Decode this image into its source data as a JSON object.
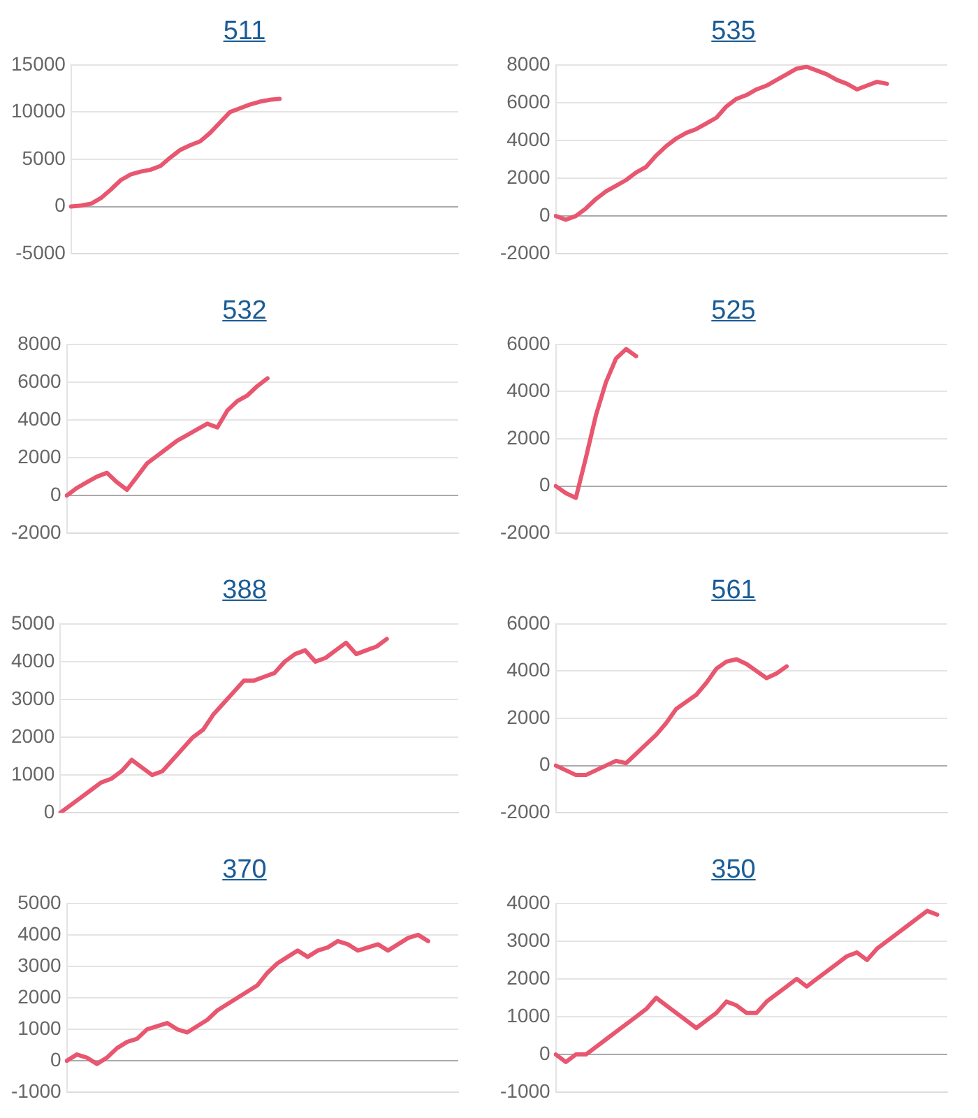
{
  "chart_data": [
    {
      "type": "line",
      "title": "511",
      "categories": [
        null,
        null,
        null,
        null,
        null,
        null,
        null,
        null,
        null,
        null,
        null,
        null,
        null,
        null,
        null,
        null,
        null,
        null,
        null,
        null,
        null,
        null,
        null,
        null,
        null,
        null,
        null,
        null,
        null,
        null,
        null,
        null,
        null,
        null,
        null,
        null,
        null,
        null,
        null,
        null
      ],
      "series": [
        {
          "color": "#e8566f",
          "values": [
            0,
            100,
            300,
            900,
            1800,
            2800,
            3400,
            3700,
            3900,
            4300,
            5200,
            6000,
            6500,
            6900,
            7800,
            8900,
            10000,
            10400,
            10800,
            11100,
            11300,
            11400,
            null,
            null,
            null,
            null,
            null,
            null,
            null,
            null,
            null,
            null,
            null,
            null,
            null,
            null,
            null,
            null,
            null,
            null
          ]
        }
      ],
      "ylim": [
        -5000,
        15000
      ],
      "yticks": [
        -5000,
        0,
        5000,
        10000,
        15000
      ],
      "grid": "y",
      "tick_labels": "y",
      "marker": "none",
      "line_style": "solid"
    },
    {
      "type": "line",
      "title": "535",
      "categories": [
        null,
        null,
        null,
        null,
        null,
        null,
        null,
        null,
        null,
        null,
        null,
        null,
        null,
        null,
        null,
        null,
        null,
        null,
        null,
        null,
        null,
        null,
        null,
        null,
        null,
        null,
        null,
        null,
        null,
        null,
        null,
        null,
        null,
        null,
        null,
        null,
        null,
        null,
        null,
        null
      ],
      "series": [
        {
          "color": "#e8566f",
          "values": [
            0,
            -200,
            0,
            400,
            900,
            1300,
            1600,
            1900,
            2300,
            2600,
            3200,
            3700,
            4100,
            4400,
            4600,
            4900,
            5200,
            5800,
            6200,
            6400,
            6700,
            6900,
            7200,
            7500,
            7800,
            7900,
            7700,
            7500,
            7200,
            7000,
            6700,
            6900,
            7100,
            7000,
            null,
            null,
            null,
            null,
            null,
            null
          ]
        }
      ],
      "ylim": [
        -2000,
        8000
      ],
      "yticks": [
        -2000,
        0,
        2000,
        4000,
        6000,
        8000
      ],
      "grid": "y",
      "tick_labels": "y",
      "marker": "none",
      "line_style": "solid"
    },
    {
      "type": "line",
      "title": "532",
      "categories": [
        null,
        null,
        null,
        null,
        null,
        null,
        null,
        null,
        null,
        null,
        null,
        null,
        null,
        null,
        null,
        null,
        null,
        null,
        null,
        null,
        null,
        null,
        null,
        null,
        null,
        null,
        null,
        null,
        null,
        null,
        null,
        null,
        null,
        null,
        null,
        null,
        null,
        null,
        null,
        null
      ],
      "series": [
        {
          "color": "#e8566f",
          "values": [
            0,
            400,
            700,
            1000,
            1200,
            700,
            300,
            1000,
            1700,
            2100,
            2500,
            2900,
            3200,
            3500,
            3800,
            3600,
            4500,
            5000,
            5300,
            5800,
            6200,
            null,
            null,
            null,
            null,
            null,
            null,
            null,
            null,
            null,
            null,
            null,
            null,
            null,
            null,
            null,
            null,
            null,
            null,
            null
          ]
        }
      ],
      "ylim": [
        -2000,
        8000
      ],
      "yticks": [
        -2000,
        0,
        2000,
        4000,
        6000,
        8000
      ],
      "grid": "y",
      "tick_labels": "y",
      "marker": "none",
      "line_style": "solid"
    },
    {
      "type": "line",
      "title": "525",
      "categories": [
        null,
        null,
        null,
        null,
        null,
        null,
        null,
        null,
        null,
        null,
        null,
        null,
        null,
        null,
        null,
        null,
        null,
        null,
        null,
        null,
        null,
        null,
        null,
        null,
        null,
        null,
        null,
        null,
        null,
        null,
        null,
        null,
        null,
        null,
        null,
        null,
        null,
        null,
        null,
        null
      ],
      "series": [
        {
          "color": "#e8566f",
          "values": [
            0,
            -300,
            -500,
            1200,
            3000,
            4400,
            5400,
            5800,
            5500,
            null,
            null,
            null,
            null,
            null,
            null,
            null,
            null,
            null,
            null,
            null,
            null,
            null,
            null,
            null,
            null,
            null,
            null,
            null,
            null,
            null,
            null,
            null,
            null,
            null,
            null,
            null,
            null,
            null,
            null,
            null
          ]
        }
      ],
      "ylim": [
        -2000,
        6000
      ],
      "yticks": [
        -2000,
        0,
        2000,
        4000,
        6000
      ],
      "grid": "y",
      "tick_labels": "y",
      "marker": "none",
      "line_style": "solid"
    },
    {
      "type": "line",
      "title": "388",
      "categories": [
        null,
        null,
        null,
        null,
        null,
        null,
        null,
        null,
        null,
        null,
        null,
        null,
        null,
        null,
        null,
        null,
        null,
        null,
        null,
        null,
        null,
        null,
        null,
        null,
        null,
        null,
        null,
        null,
        null,
        null,
        null,
        null,
        null,
        null,
        null,
        null,
        null,
        null,
        null,
        null
      ],
      "series": [
        {
          "color": "#e8566f",
          "values": [
            0,
            200,
            400,
            600,
            800,
            900,
            1100,
            1400,
            1200,
            1000,
            1100,
            1400,
            1700,
            2000,
            2200,
            2600,
            2900,
            3200,
            3500,
            3500,
            3600,
            3700,
            4000,
            4200,
            4300,
            4000,
            4100,
            4300,
            4500,
            4200,
            4300,
            4400,
            4600,
            null,
            null,
            null,
            null,
            null,
            null,
            null
          ]
        }
      ],
      "ylim": [
        0,
        5000
      ],
      "yticks": [
        0,
        1000,
        2000,
        3000,
        4000,
        5000
      ],
      "grid": "y",
      "tick_labels": "y",
      "marker": "none",
      "line_style": "solid"
    },
    {
      "type": "line",
      "title": "561",
      "categories": [
        null,
        null,
        null,
        null,
        null,
        null,
        null,
        null,
        null,
        null,
        null,
        null,
        null,
        null,
        null,
        null,
        null,
        null,
        null,
        null,
        null,
        null,
        null,
        null,
        null,
        null,
        null,
        null,
        null,
        null,
        null,
        null,
        null,
        null,
        null,
        null,
        null,
        null,
        null,
        null
      ],
      "series": [
        {
          "color": "#e8566f",
          "values": [
            0,
            -200,
            -400,
            -400,
            -200,
            0,
            200,
            100,
            500,
            900,
            1300,
            1800,
            2400,
            2700,
            3000,
            3500,
            4100,
            4400,
            4500,
            4300,
            4000,
            3700,
            3900,
            4200,
            null,
            null,
            null,
            null,
            null,
            null,
            null,
            null,
            null,
            null,
            null,
            null,
            null,
            null,
            null,
            null
          ]
        }
      ],
      "ylim": [
        -2000,
        6000
      ],
      "yticks": [
        -2000,
        0,
        2000,
        4000,
        6000
      ],
      "grid": "y",
      "tick_labels": "y",
      "marker": "none",
      "line_style": "solid"
    },
    {
      "type": "line",
      "title": "370",
      "categories": [
        null,
        null,
        null,
        null,
        null,
        null,
        null,
        null,
        null,
        null,
        null,
        null,
        null,
        null,
        null,
        null,
        null,
        null,
        null,
        null,
        null,
        null,
        null,
        null,
        null,
        null,
        null,
        null,
        null,
        null,
        null,
        null,
        null,
        null,
        null,
        null,
        null,
        null,
        null,
        null
      ],
      "series": [
        {
          "color": "#e8566f",
          "values": [
            0,
            200,
            100,
            -100,
            100,
            400,
            600,
            700,
            1000,
            1100,
            1200,
            1000,
            900,
            1100,
            1300,
            1600,
            1800,
            2000,
            2200,
            2400,
            2800,
            3100,
            3300,
            3500,
            3300,
            3500,
            3600,
            3800,
            3700,
            3500,
            3600,
            3700,
            3500,
            3700,
            3900,
            4000,
            3800,
            null,
            null,
            null
          ]
        }
      ],
      "ylim": [
        -1000,
        5000
      ],
      "yticks": [
        -1000,
        0,
        1000,
        2000,
        3000,
        4000,
        5000
      ],
      "grid": "y",
      "tick_labels": "y",
      "marker": "none",
      "line_style": "solid"
    },
    {
      "type": "line",
      "title": "350",
      "categories": [
        null,
        null,
        null,
        null,
        null,
        null,
        null,
        null,
        null,
        null,
        null,
        null,
        null,
        null,
        null,
        null,
        null,
        null,
        null,
        null,
        null,
        null,
        null,
        null,
        null,
        null,
        null,
        null,
        null,
        null,
        null,
        null,
        null,
        null,
        null,
        null,
        null,
        null,
        null,
        null
      ],
      "series": [
        {
          "color": "#e8566f",
          "values": [
            0,
            -200,
            0,
            0,
            200,
            400,
            600,
            800,
            1000,
            1200,
            1500,
            1300,
            1100,
            900,
            700,
            900,
            1100,
            1400,
            1300,
            1100,
            1100,
            1400,
            1600,
            1800,
            2000,
            1800,
            2000,
            2200,
            2400,
            2600,
            2700,
            2500,
            2800,
            3000,
            3200,
            3400,
            3600,
            3800,
            3700,
            null
          ]
        }
      ],
      "ylim": [
        -1000,
        4000
      ],
      "yticks": [
        -1000,
        0,
        1000,
        2000,
        3000,
        4000
      ],
      "grid": "y",
      "tick_labels": "y",
      "marker": "none",
      "line_style": "solid"
    }
  ]
}
